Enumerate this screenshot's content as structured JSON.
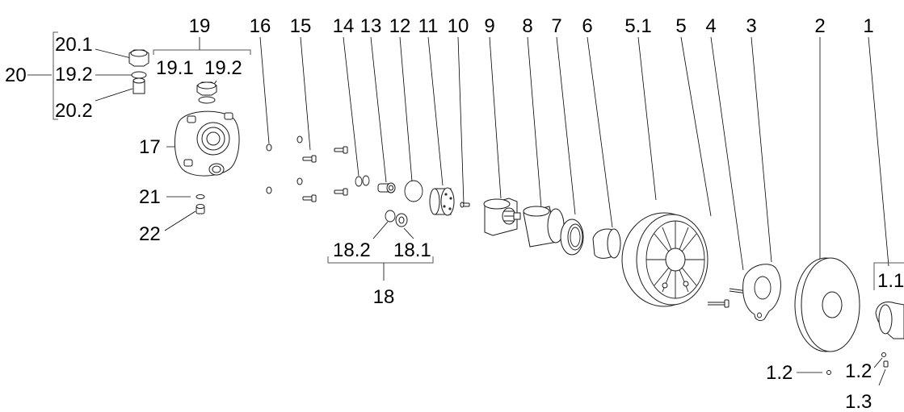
{
  "callouts": {
    "c1": "1",
    "c2": "2",
    "c3": "3",
    "c4": "4",
    "c5": "5",
    "c5_1": "5.1",
    "c6": "6",
    "c7": "7",
    "c8": "8",
    "c9": "9",
    "c10": "10",
    "c11": "11",
    "c12": "12",
    "c13": "13",
    "c14": "14",
    "c15": "15",
    "c16": "16",
    "c17": "17",
    "c18": "18",
    "c18_1": "18.1",
    "c18_2": "18.2",
    "c19": "19",
    "c19_1": "19.1",
    "c19_2": "19.2",
    "c19_2b": "19.2",
    "c20": "20",
    "c20_1": "20.1",
    "c20_2": "20.2",
    "c21": "21",
    "c22": "22",
    "c1_1": "1.1",
    "c1_2a": "1.2",
    "c1_2b": "1.2",
    "c1_3": "1.3"
  }
}
